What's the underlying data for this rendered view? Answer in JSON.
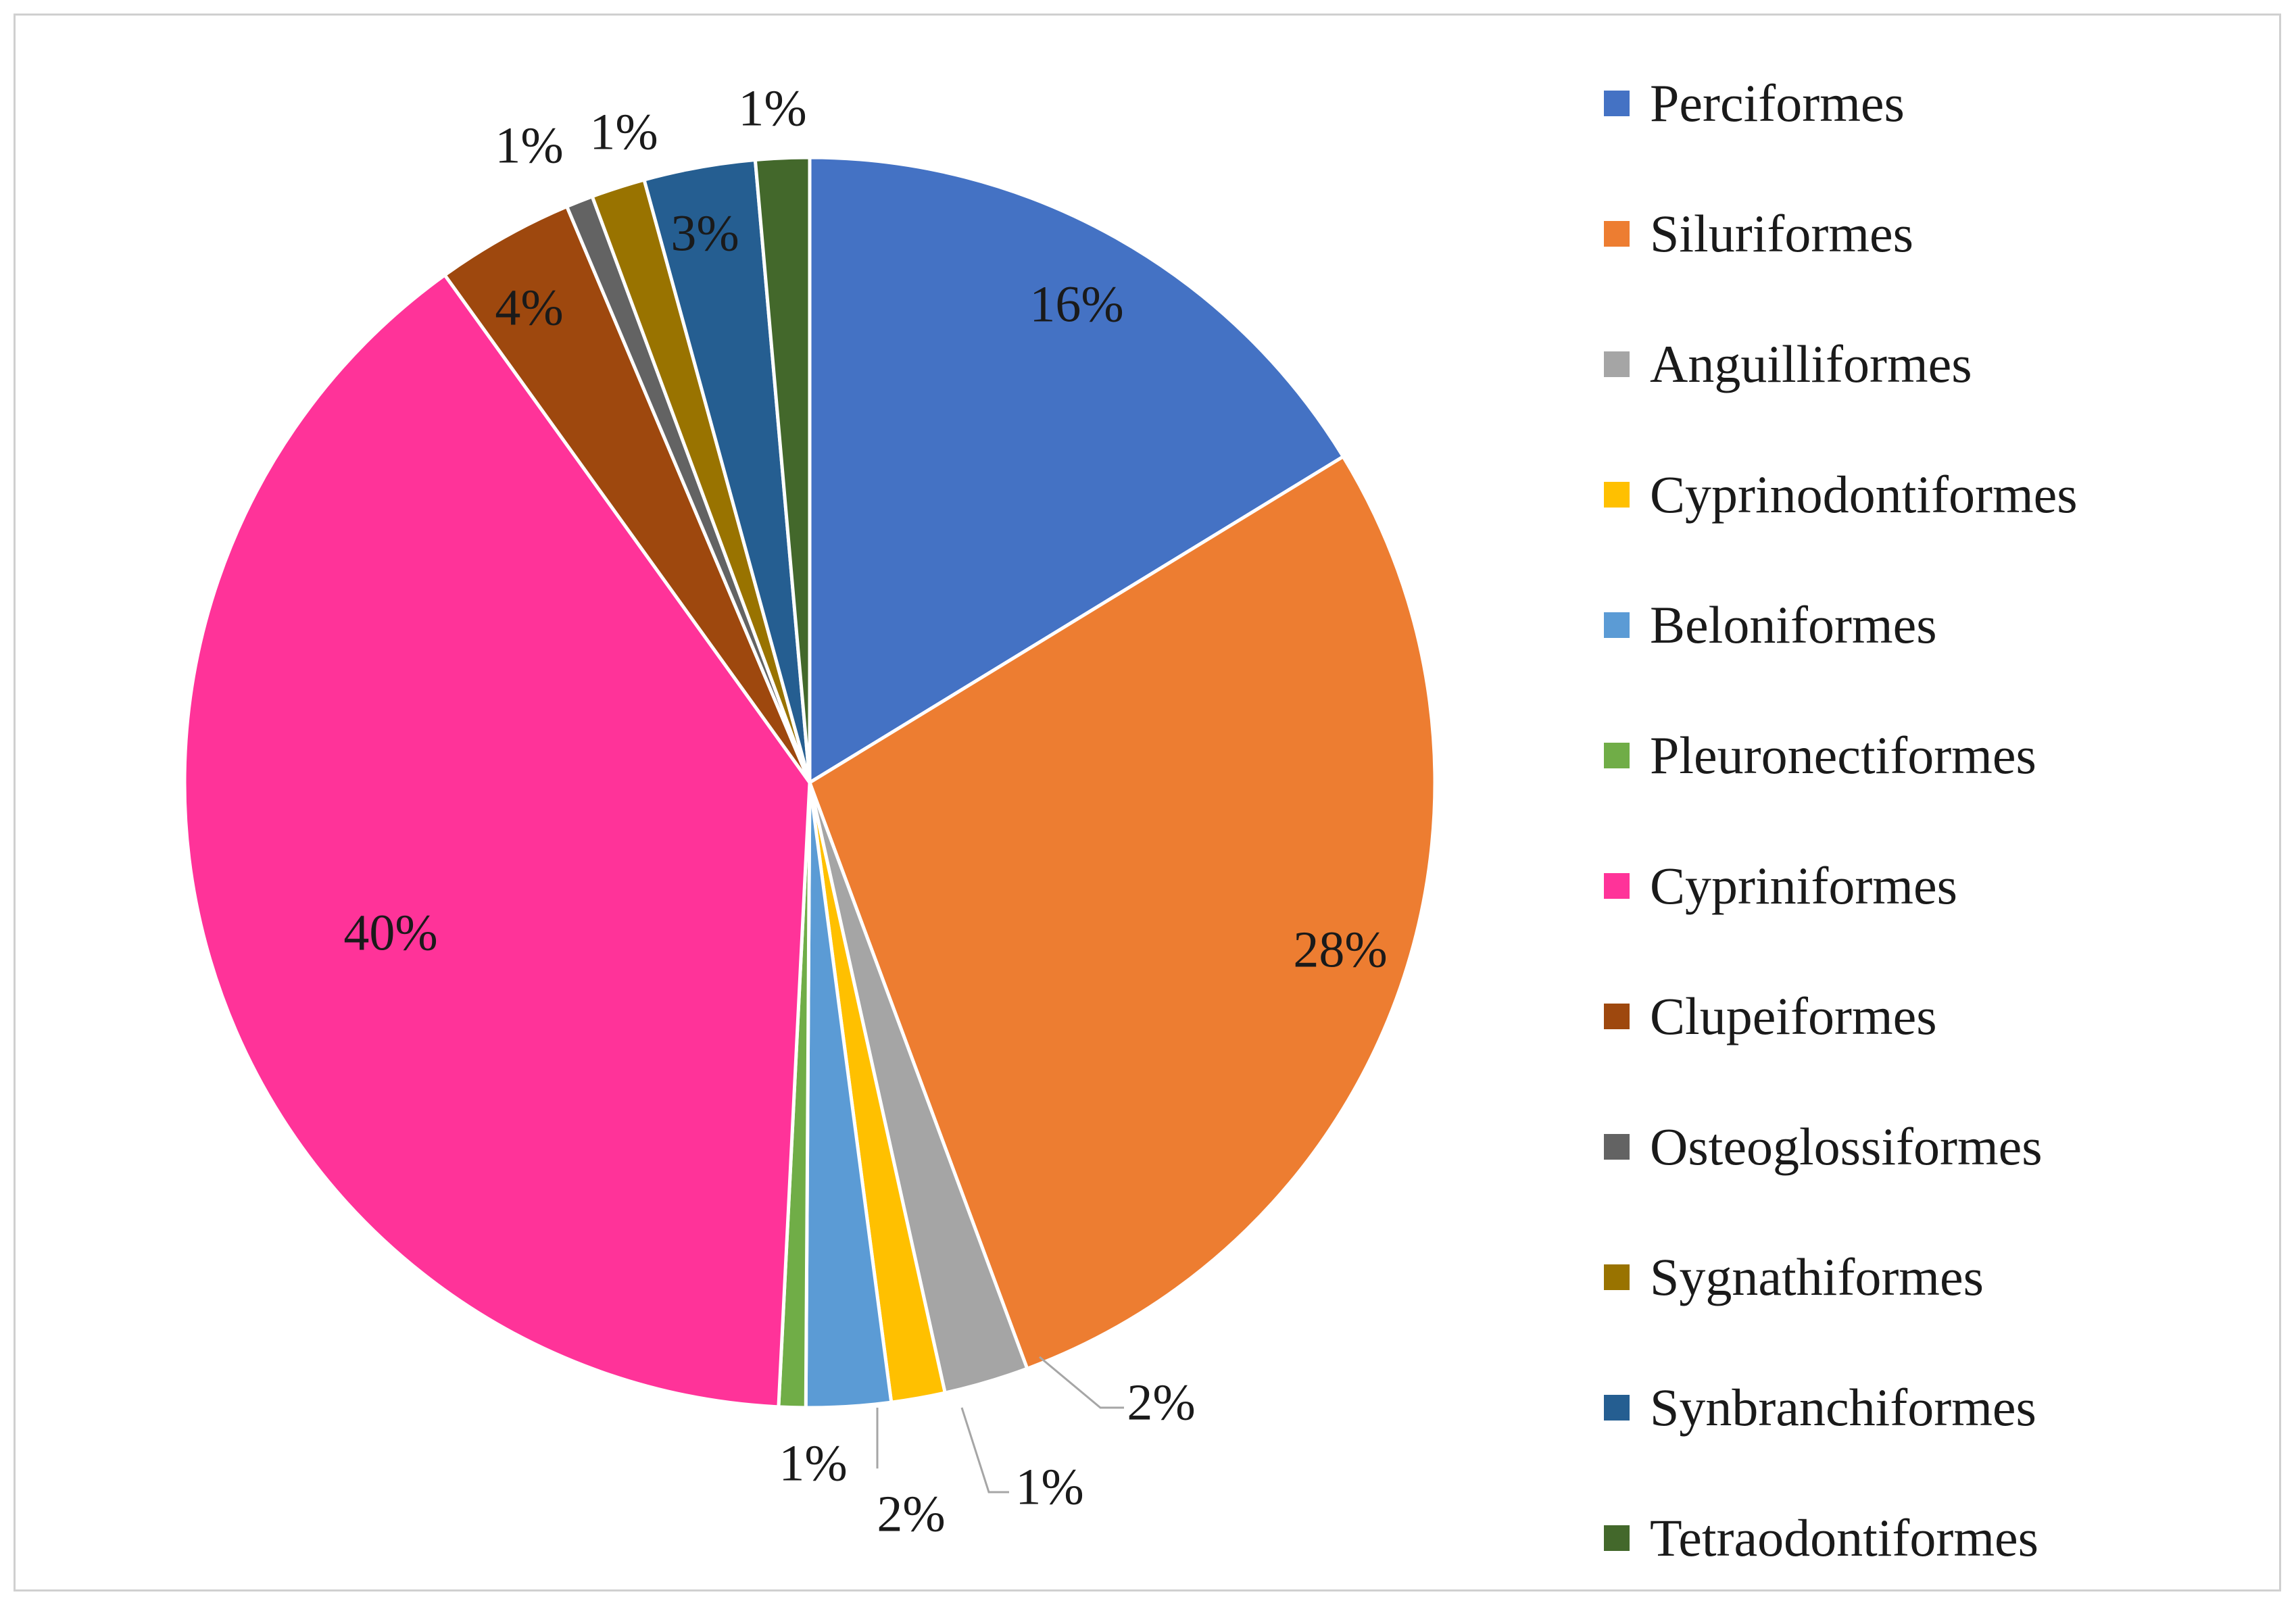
{
  "chart_data": {
    "type": "pie",
    "title": "",
    "legend_position": "right",
    "categories": [
      "Perciformes",
      "Siluriformes",
      "Anguilliformes",
      "Cyprinodontiformes",
      "Beloniformes",
      "Pleuronectiformes",
      "Cypriniformes",
      "Clupeiformes",
      "Osteoglossiformes",
      "Sygnathiformes",
      "Synbranchiformes",
      "Tetraodontiformes"
    ],
    "values": [
      16.4,
      28.3,
      2.2,
      1.4,
      2.2,
      0.7,
      39.6,
      3.6,
      0.7,
      1.4,
      2.9,
      1.4
    ],
    "labels": [
      "16%",
      "28%",
      "2%",
      "1%",
      "2%",
      "1%",
      "40%",
      "4%",
      "1%",
      "1%",
      "3%",
      "1%"
    ],
    "colors": [
      "#4472c4",
      "#ed7d31",
      "#a5a5a5",
      "#ffc000",
      "#5b9bd5",
      "#70ad47",
      "#ff3399",
      "#9e480e",
      "#636363",
      "#997300",
      "#255e91",
      "#43682b"
    ]
  }
}
